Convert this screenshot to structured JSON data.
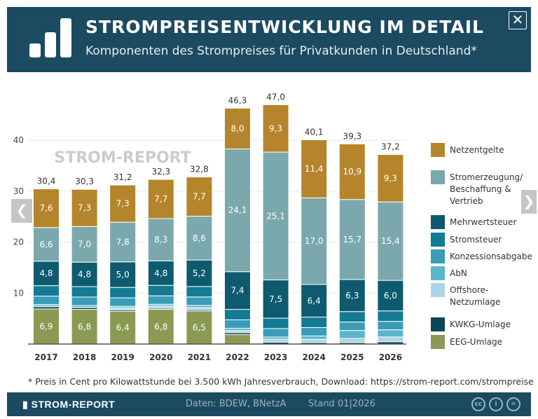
{
  "header": {
    "title": "STROMPREISENTWICKLUNG IM DETAIL",
    "subtitle": "Komponenten des Strompreises für Privatkunden in Deutschland*",
    "close": "✕"
  },
  "nav": {
    "prev": "❮",
    "next": "❯"
  },
  "watermark": "STROM-REPORT",
  "footnote": "* Preis in Cent pro Kilowattstunde bei 3.500 kWh Jahresverbrauch, Download: https://strom-report.com/strompreise",
  "footer": {
    "brand": "STROM-REPORT",
    "source": "Daten: BDEW, BNetzA",
    "stand": "Stand 01|2026",
    "icons": [
      "cc-icon",
      "by-icon",
      "nd-icon"
    ]
  },
  "chart_data": {
    "type": "bar",
    "stacked": true,
    "ylim": [
      0,
      47
    ],
    "yticks": [
      10,
      20,
      30,
      40
    ],
    "grid": true,
    "legend_position": "right",
    "categories": [
      "2017",
      "2018",
      "2019",
      "2020",
      "2021",
      "2022",
      "2023",
      "2024",
      "2025",
      "2026"
    ],
    "totals": [
      "30,4",
      "30,3",
      "31,2",
      "32,3",
      "32,8",
      "46,3",
      "47,0",
      "40,1",
      "39,3",
      "37,2"
    ],
    "series": [
      {
        "name": "EEG-Umlage",
        "color": "#8a9a53",
        "values": [
          6.9,
          6.8,
          6.4,
          6.8,
          6.5,
          1.85,
          0,
          0,
          0,
          0
        ],
        "labels": [
          "6,9",
          "6,8",
          "6,4",
          "6,8",
          "6,5",
          "",
          "",
          "",
          "",
          ""
        ]
      },
      {
        "name": "KWKG-Umlage",
        "color": "#0c4659",
        "values": [
          0.44,
          0.35,
          0.28,
          0.23,
          0.25,
          0.38,
          0.36,
          0.28,
          0.28,
          0.45
        ]
      },
      {
        "name": "Offshore-Netzumlage",
        "color": "#a9d6e3",
        "values": [
          0.04,
          0.04,
          0.42,
          0.42,
          0.4,
          0.42,
          0.59,
          0.66,
          0.82,
          0.94
        ]
      },
      {
        "name": "AbN",
        "color": "#5cb5cd",
        "values": [
          0.37,
          0.37,
          0.31,
          0.36,
          0.43,
          0.44,
          0.42,
          0.64,
          1.56,
          1.4
        ]
      },
      {
        "name": "Konzessionsabgabe",
        "color": "#3a9cb6",
        "values": [
          1.66,
          1.66,
          1.66,
          1.66,
          1.66,
          1.66,
          1.66,
          1.66,
          1.66,
          1.66
        ]
      },
      {
        "name": "Stromsteuer",
        "color": "#137b94",
        "values": [
          2.05,
          2.05,
          2.05,
          2.05,
          2.05,
          2.05,
          2.05,
          2.05,
          2.05,
          2.05
        ]
      },
      {
        "name": "Mehrwertsteuer",
        "color": "#0e5a6e",
        "values": [
          4.8,
          4.8,
          5.0,
          4.8,
          5.2,
          7.4,
          7.5,
          6.4,
          6.3,
          6.0
        ],
        "labels": [
          "4,8",
          "4,8",
          "5,0",
          "4,8",
          "5,2",
          "7,4",
          "7,5",
          "6,4",
          "6,3",
          "6,0"
        ]
      },
      {
        "name": "Stromerzeugung/ Beschaffung & Vertrieb",
        "color": "#7aa8ad",
        "values": [
          6.6,
          7.0,
          7.8,
          8.3,
          8.6,
          24.1,
          25.1,
          17.0,
          15.7,
          15.4
        ],
        "labels": [
          "6,6",
          "7,0",
          "7,8",
          "8,3",
          "8,6",
          "24,1",
          "25,1",
          "17,0",
          "15,7",
          "15,4"
        ]
      },
      {
        "name": "Netzentgelte",
        "color": "#b5852b",
        "values": [
          7.6,
          7.3,
          7.3,
          7.7,
          7.7,
          8.0,
          9.3,
          11.4,
          10.9,
          9.3
        ],
        "labels": [
          "7,6",
          "7,3",
          "7,3",
          "7,7",
          "7,7",
          "8,0",
          "9,3",
          "11,4",
          "10,9",
          "9,3"
        ]
      }
    ],
    "legend": [
      {
        "lines": [
          "Netzentgelte"
        ],
        "color": "#b5852b"
      },
      {
        "lines": [
          "Stromerzeugung/",
          "Beschaffung &",
          "Vertrieb"
        ],
        "color": "#7aa8ad"
      },
      {
        "lines": [
          "Mehrwertsteuer"
        ],
        "color": "#0e5a6e"
      },
      {
        "lines": [
          "Stromsteuer"
        ],
        "color": "#137b94"
      },
      {
        "lines": [
          "Konzessionsabgabe"
        ],
        "color": "#3a9cb6"
      },
      {
        "lines": [
          "AbN"
        ],
        "color": "#5cb5cd"
      },
      {
        "lines": [
          "Offshore-",
          "Netzumlage"
        ],
        "color": "#a9d6e3"
      },
      {
        "lines": [
          "KWKG-Umlage"
        ],
        "color": "#0c4659"
      },
      {
        "lines": [
          "EEG-Umlage"
        ],
        "color": "#8a9a53"
      }
    ]
  }
}
